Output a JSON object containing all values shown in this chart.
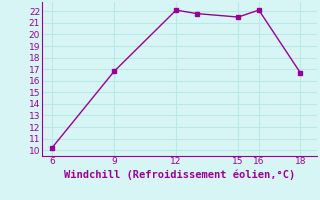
{
  "x": [
    6,
    9,
    12,
    13,
    15,
    16,
    18
  ],
  "y": [
    10.2,
    16.8,
    22.1,
    21.8,
    21.5,
    22.1,
    16.7
  ],
  "line_color": "#990099",
  "marker": "s",
  "marker_size": 2.5,
  "linewidth": 1,
  "xlabel": "Windchill (Refroidissement éolien,°C)",
  "xlabel_fontsize": 7.5,
  "xlabel_color": "#990099",
  "xticks": [
    6,
    9,
    12,
    15,
    16,
    18
  ],
  "yticks": [
    10,
    11,
    12,
    13,
    14,
    15,
    16,
    17,
    18,
    19,
    20,
    21,
    22
  ],
  "xlim": [
    5.5,
    18.8
  ],
  "ylim": [
    9.5,
    22.8
  ],
  "bg_color": "#d8f5f5",
  "grid_color": "#b8e8e8",
  "tick_fontsize": 6.5,
  "tick_color": "#990099"
}
